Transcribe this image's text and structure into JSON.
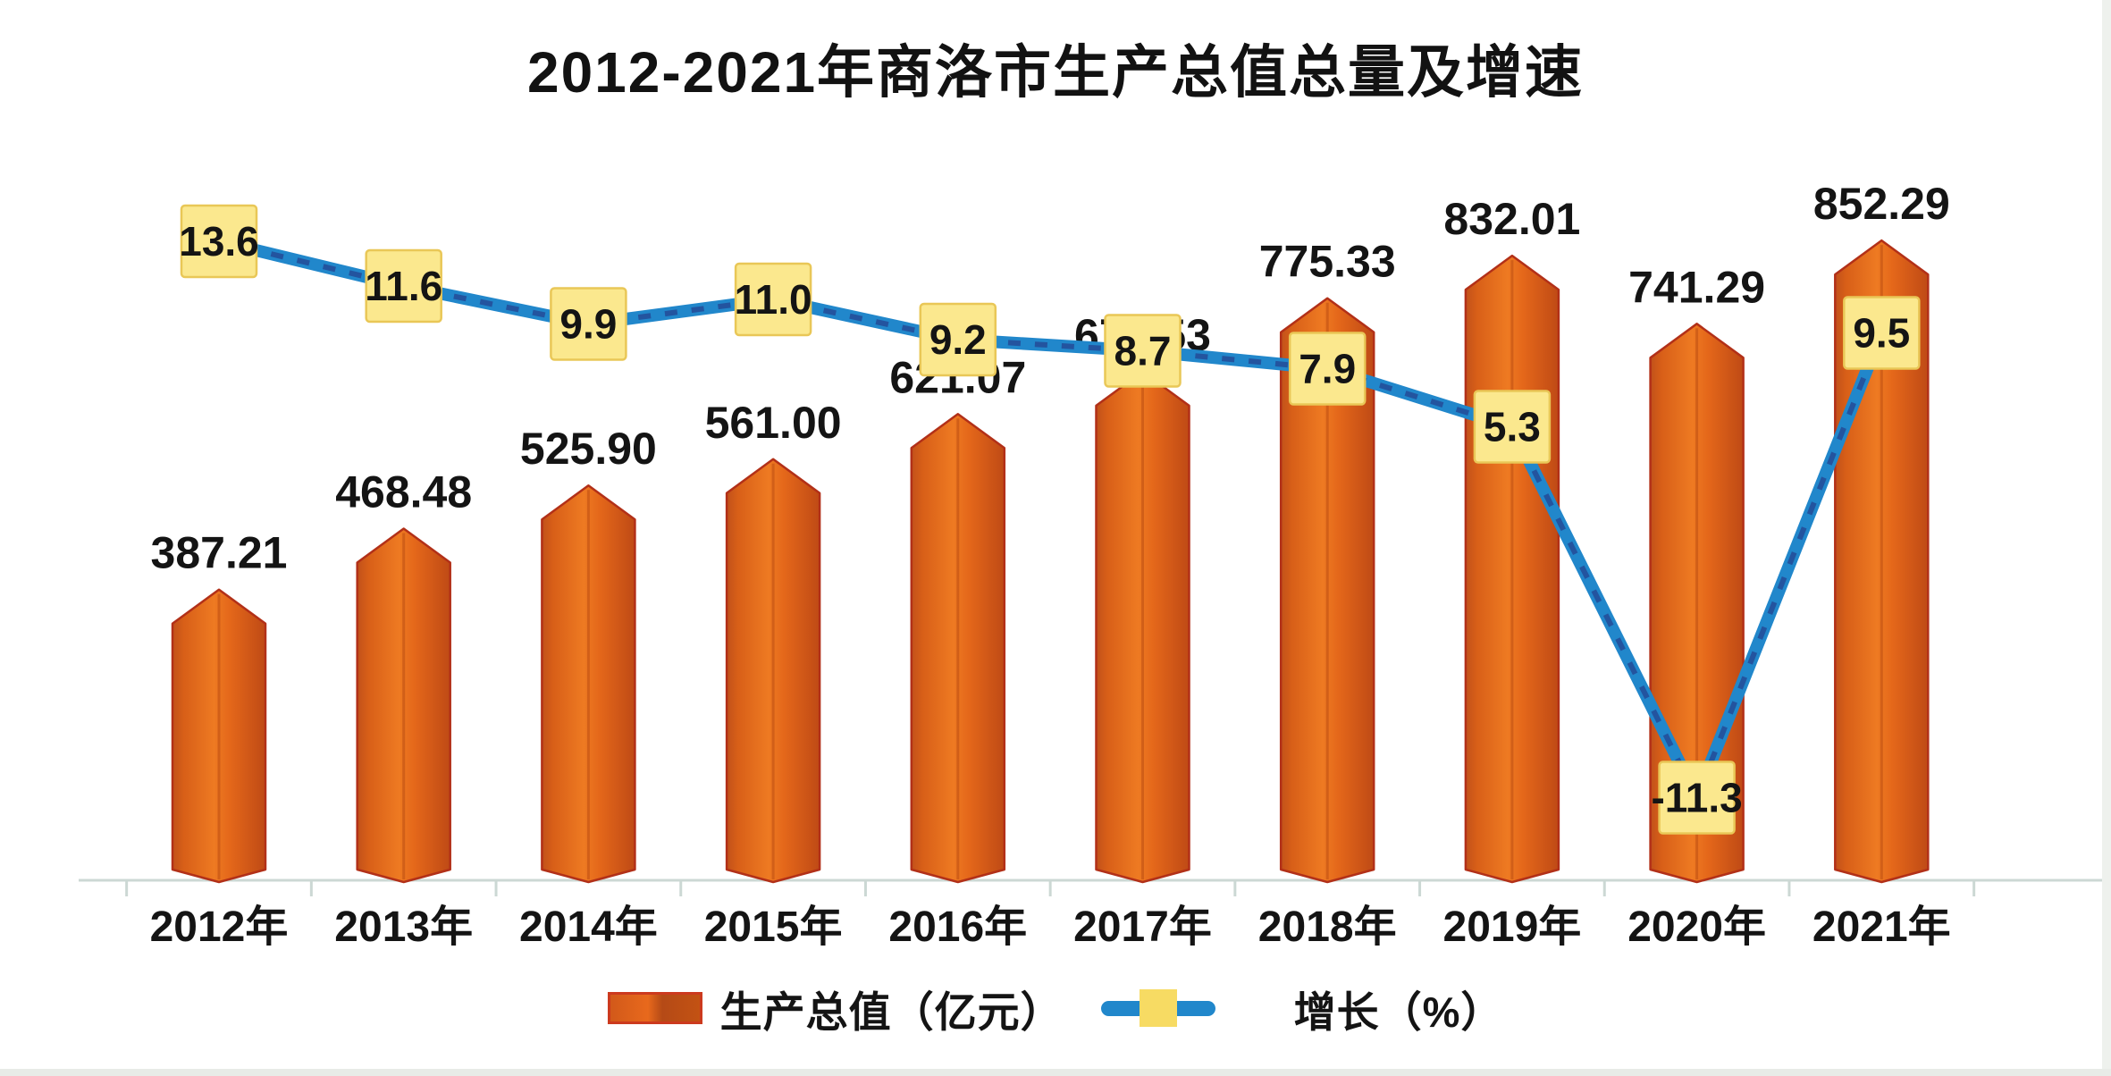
{
  "title": "2012-2021年商洛市生产总值总量及增速",
  "legend": {
    "gdp_label": "生产总值（亿元）",
    "growth_label": "增长（%）"
  },
  "colors": {
    "bar_gradient": [
      "#c1511a",
      "#d85f18",
      "#ee7a22",
      "#e4671a",
      "#bf4a15"
    ],
    "bar_outline": "#b23018",
    "bar_ridge": "rgba(150,45,5,0.30)",
    "line_blue": "#2187cb",
    "line_dash_navy": "#23549f",
    "marker_fill": "#fbe88e",
    "marker_border": "#e9c757",
    "axis_gray": "#ccd8d4",
    "text_black": "#141414"
  },
  "chart_data": {
    "type": "combo-bar-line",
    "title": "2012-2021年商洛市生产总值总量及增速",
    "categories": [
      "2012年",
      "2013年",
      "2014年",
      "2015年",
      "2016年",
      "2017年",
      "2018年",
      "2019年",
      "2020年",
      "2021年"
    ],
    "series": [
      {
        "name": "生产总值（亿元）",
        "type": "bar",
        "unit": "亿元",
        "values": [
          387.21,
          468.48,
          525.9,
          561.0,
          621.07,
          677.53,
          775.33,
          832.01,
          741.29,
          852.29
        ],
        "value_labels": [
          "387.21",
          "468.48",
          "525.90",
          "561.00",
          "621.07",
          "677.53",
          "775.33",
          "832.01",
          "741.29",
          "852.29"
        ]
      },
      {
        "name": "增长（%）",
        "type": "line",
        "unit": "%",
        "values": [
          13.6,
          11.6,
          9.9,
          11.0,
          9.2,
          8.7,
          7.9,
          5.3,
          -11.3,
          9.5
        ],
        "value_labels": [
          "13.6",
          "11.6",
          "9.9",
          "11.0",
          "9.2",
          "8.7",
          "7.9",
          "5.3",
          "-11.3",
          "9.5"
        ]
      }
    ],
    "xlabel": "",
    "ylabel": "",
    "axes_shown": "x-axis only, no y-axis scale",
    "gridlines": "none",
    "value_labels_shown": true,
    "legend_position": "bottom"
  }
}
